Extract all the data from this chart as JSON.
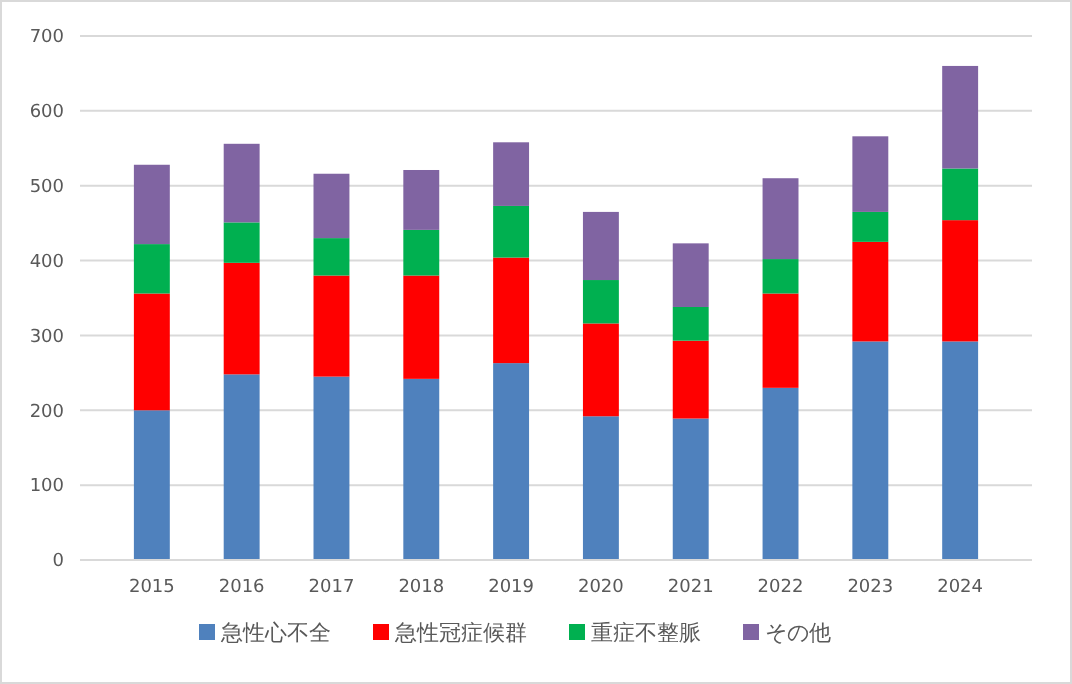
{
  "chart_data": {
    "type": "bar",
    "stacked": true,
    "categories": [
      "2015",
      "2016",
      "2017",
      "2018",
      "2019",
      "2020",
      "2021",
      "2022",
      "2023",
      "2024"
    ],
    "series": [
      {
        "name": "急性心不全",
        "color": "#4f81bd",
        "values": [
          200,
          248,
          245,
          242,
          263,
          192,
          189,
          230,
          292,
          292
        ]
      },
      {
        "name": "急性冠症候群",
        "color": "#ff0000",
        "values": [
          156,
          149,
          135,
          138,
          141,
          124,
          104,
          126,
          133,
          162
        ]
      },
      {
        "name": "重症不整脈",
        "color": "#00b050",
        "values": [
          66,
          54,
          50,
          61,
          69,
          58,
          45,
          46,
          40,
          69
        ]
      },
      {
        "name": "その他",
        "color": "#8064a2",
        "values": [
          106,
          105,
          86,
          80,
          85,
          91,
          85,
          108,
          101,
          137
        ]
      }
    ],
    "ylim": [
      0,
      700
    ],
    "yticks": [
      0,
      100,
      200,
      300,
      400,
      500,
      600,
      700
    ],
    "grid": "y",
    "legend": "bottom"
  }
}
